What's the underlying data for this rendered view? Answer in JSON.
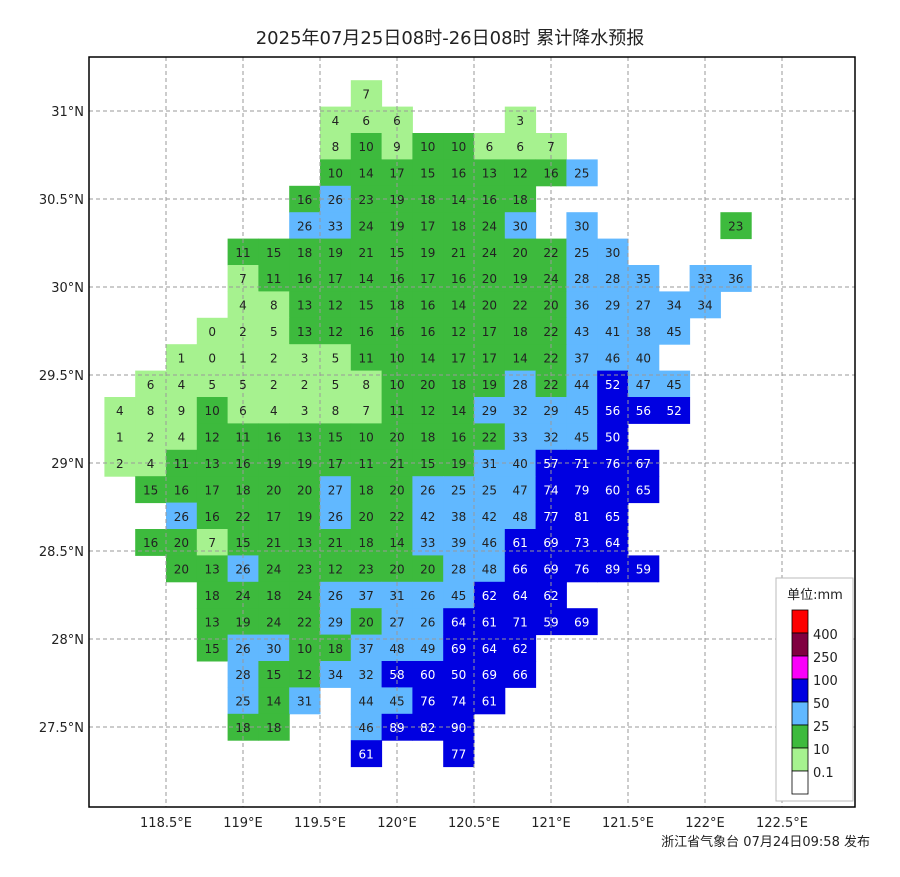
{
  "title": "2025年07月25日08时-26日08时 累计降水预报",
  "footer": "浙江省气象台 07月24日09:58 发布",
  "axes": {
    "lat_ticks": [
      {
        "value": 31,
        "label": "31°N"
      },
      {
        "value": 30.5,
        "label": "30.5°N"
      },
      {
        "value": 30,
        "label": "30°N"
      },
      {
        "value": 29.5,
        "label": "29.5°N"
      },
      {
        "value": 29,
        "label": "29°N"
      },
      {
        "value": 28.5,
        "label": "28.5°N"
      },
      {
        "value": 28,
        "label": "28°N"
      },
      {
        "value": 27.5,
        "label": "27.5°N"
      }
    ],
    "lon_ticks": [
      {
        "value": 118.5,
        "label": "118.5°E"
      },
      {
        "value": 119,
        "label": "119°E"
      },
      {
        "value": 119.5,
        "label": "119.5°E"
      },
      {
        "value": 120,
        "label": "120°E"
      },
      {
        "value": 120.5,
        "label": "120.5°E"
      },
      {
        "value": 121,
        "label": "121°E"
      },
      {
        "value": 121.5,
        "label": "121.5°E"
      },
      {
        "value": 122,
        "label": "122°E"
      },
      {
        "value": 122.5,
        "label": "122.5°E"
      }
    ]
  },
  "legend": {
    "unit": "单位:mm",
    "levels": [
      {
        "label": "400",
        "min": 400,
        "color": "#fd0000"
      },
      {
        "label": "250",
        "min": 250,
        "color": "#800040"
      },
      {
        "label": "100",
        "min": 100,
        "color": "#fa00fa"
      },
      {
        "label": "50",
        "min": 50,
        "color": "#0000e1"
      },
      {
        "label": "25",
        "min": 25,
        "color": "#61b8ff"
      },
      {
        "label": "10",
        "min": 10,
        "color": "#3dba3d"
      },
      {
        "label": "0.1",
        "min": 0,
        "color": "#a6f28f"
      },
      {
        "label": "",
        "min": -1,
        "color": "#ffffff"
      }
    ]
  },
  "grid": {
    "lon_start": 118.2,
    "lon_step": 0.2,
    "lat_start": 31.1,
    "lat_step": -0.15,
    "values": [
      [
        null,
        null,
        null,
        null,
        null,
        null,
        null,
        null,
        7,
        null,
        null,
        null,
        null,
        null,
        null,
        null,
        null,
        null,
        null,
        null,
        null
      ],
      [
        null,
        null,
        null,
        null,
        null,
        null,
        null,
        4,
        6,
        6,
        null,
        null,
        null,
        3,
        null,
        null,
        null,
        null,
        null,
        null,
        null
      ],
      [
        null,
        null,
        null,
        null,
        null,
        null,
        null,
        8,
        10,
        9,
        10,
        10,
        6,
        6,
        7,
        null,
        null,
        null,
        null,
        null,
        null
      ],
      [
        null,
        null,
        null,
        null,
        null,
        null,
        null,
        10,
        14,
        17,
        15,
        16,
        13,
        12,
        16,
        25,
        null,
        null,
        null,
        null,
        null
      ],
      [
        null,
        null,
        null,
        null,
        null,
        null,
        16,
        26,
        23,
        19,
        18,
        14,
        16,
        18,
        null,
        null,
        null,
        null,
        null,
        null,
        null
      ],
      [
        null,
        null,
        null,
        null,
        null,
        null,
        26,
        33,
        24,
        19,
        17,
        18,
        24,
        30,
        null,
        30,
        null,
        null,
        null,
        null,
        23
      ],
      [
        null,
        null,
        null,
        null,
        11,
        15,
        18,
        19,
        21,
        15,
        19,
        21,
        24,
        20,
        22,
        25,
        30,
        null,
        null,
        null,
        null
      ],
      [
        null,
        null,
        null,
        null,
        7,
        11,
        16,
        17,
        14,
        16,
        17,
        16,
        20,
        19,
        24,
        28,
        28,
        35,
        null,
        33,
        36
      ],
      [
        null,
        null,
        null,
        null,
        4,
        8,
        13,
        12,
        15,
        18,
        16,
        14,
        20,
        22,
        20,
        36,
        29,
        27,
        34,
        34,
        null
      ],
      [
        null,
        null,
        null,
        0,
        2,
        5,
        13,
        12,
        16,
        16,
        16,
        12,
        17,
        18,
        22,
        43,
        41,
        38,
        45,
        null,
        null
      ],
      [
        null,
        null,
        1,
        0,
        1,
        2,
        3,
        5,
        11,
        10,
        14,
        17,
        17,
        14,
        22,
        37,
        46,
        40,
        null,
        null,
        null
      ],
      [
        null,
        6,
        4,
        5,
        5,
        2,
        2,
        5,
        8,
        10,
        20,
        18,
        19,
        28,
        22,
        44,
        52,
        47,
        45,
        null,
        null
      ],
      [
        4,
        8,
        9,
        10,
        6,
        4,
        3,
        8,
        7,
        11,
        12,
        14,
        29,
        32,
        29,
        45,
        56,
        56,
        52,
        null,
        null
      ],
      [
        1,
        2,
        4,
        12,
        11,
        16,
        13,
        15,
        10,
        20,
        18,
        16,
        22,
        33,
        32,
        45,
        50,
        null,
        null,
        null,
        null
      ],
      [
        2,
        4,
        11,
        13,
        16,
        19,
        19,
        17,
        11,
        21,
        15,
        19,
        31,
        40,
        57,
        71,
        76,
        67,
        null,
        null,
        null
      ],
      [
        null,
        15,
        16,
        17,
        18,
        20,
        20,
        27,
        18,
        20,
        26,
        25,
        25,
        47,
        74,
        79,
        60,
        65,
        null,
        null,
        null
      ],
      [
        null,
        null,
        26,
        16,
        22,
        17,
        19,
        26,
        20,
        22,
        42,
        38,
        42,
        48,
        77,
        81,
        65,
        null,
        null,
        null,
        null
      ],
      [
        null,
        16,
        20,
        7,
        15,
        21,
        13,
        21,
        18,
        14,
        33,
        39,
        46,
        61,
        69,
        73,
        64,
        null,
        null,
        null,
        null
      ],
      [
        null,
        null,
        20,
        13,
        26,
        24,
        23,
        12,
        23,
        20,
        20,
        28,
        48,
        66,
        69,
        76,
        89,
        59,
        null,
        null,
        null
      ],
      [
        null,
        null,
        null,
        18,
        24,
        18,
        24,
        26,
        37,
        31,
        26,
        45,
        62,
        64,
        62,
        null,
        null,
        null,
        null,
        null,
        null
      ],
      [
        null,
        null,
        null,
        13,
        19,
        24,
        22,
        29,
        20,
        27,
        26,
        64,
        61,
        71,
        59,
        69,
        null,
        null,
        null,
        null,
        null
      ],
      [
        null,
        null,
        null,
        15,
        26,
        30,
        10,
        18,
        37,
        48,
        49,
        69,
        64,
        62,
        null,
        null,
        null,
        null,
        null,
        null,
        null
      ],
      [
        null,
        null,
        null,
        null,
        28,
        15,
        12,
        34,
        32,
        58,
        60,
        50,
        69,
        66,
        null,
        null,
        null,
        null,
        null,
        null,
        null
      ],
      [
        null,
        null,
        null,
        null,
        25,
        14,
        31,
        null,
        44,
        45,
        76,
        74,
        61,
        null,
        null,
        null,
        null,
        null,
        null,
        null,
        null
      ],
      [
        null,
        null,
        null,
        null,
        18,
        18,
        null,
        null,
        46,
        89,
        82,
        90,
        null,
        null,
        null,
        null,
        null,
        null,
        null,
        null,
        null
      ],
      [
        null,
        null,
        null,
        null,
        null,
        null,
        null,
        null,
        61,
        null,
        null,
        77,
        null,
        null,
        null,
        null,
        null,
        null,
        null,
        null,
        null
      ]
    ]
  }
}
